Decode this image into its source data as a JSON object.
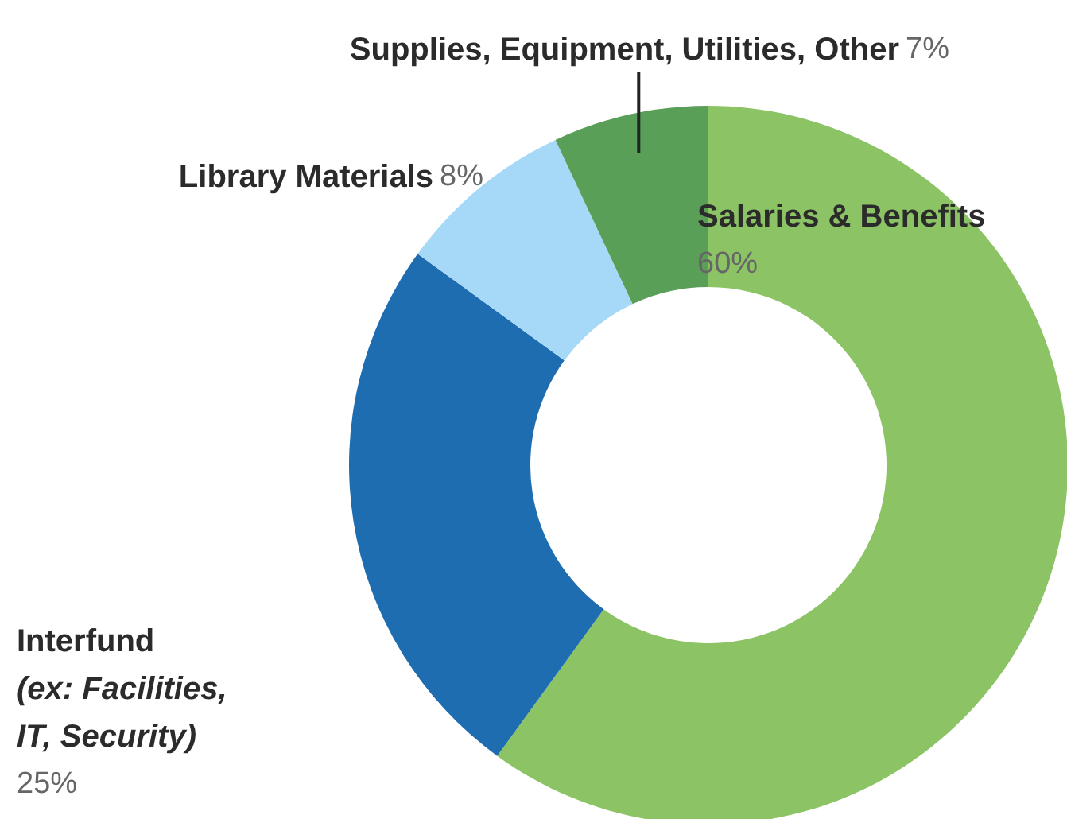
{
  "chart_data": {
    "type": "donut",
    "categories": [
      "Salaries & Benefits",
      "Interfund\n(ex: Facilities,\nIT, Security)",
      "Library Materials",
      "Supplies, Equipment, Utilities, Other"
    ],
    "values": [
      60,
      25,
      8,
      7
    ],
    "colors": [
      "#8cc465",
      "#1f6db1",
      "#a6d8f7",
      "#5a9f58"
    ],
    "value_labels": [
      "60%",
      "25%",
      "8%",
      "7%"
    ]
  }
}
